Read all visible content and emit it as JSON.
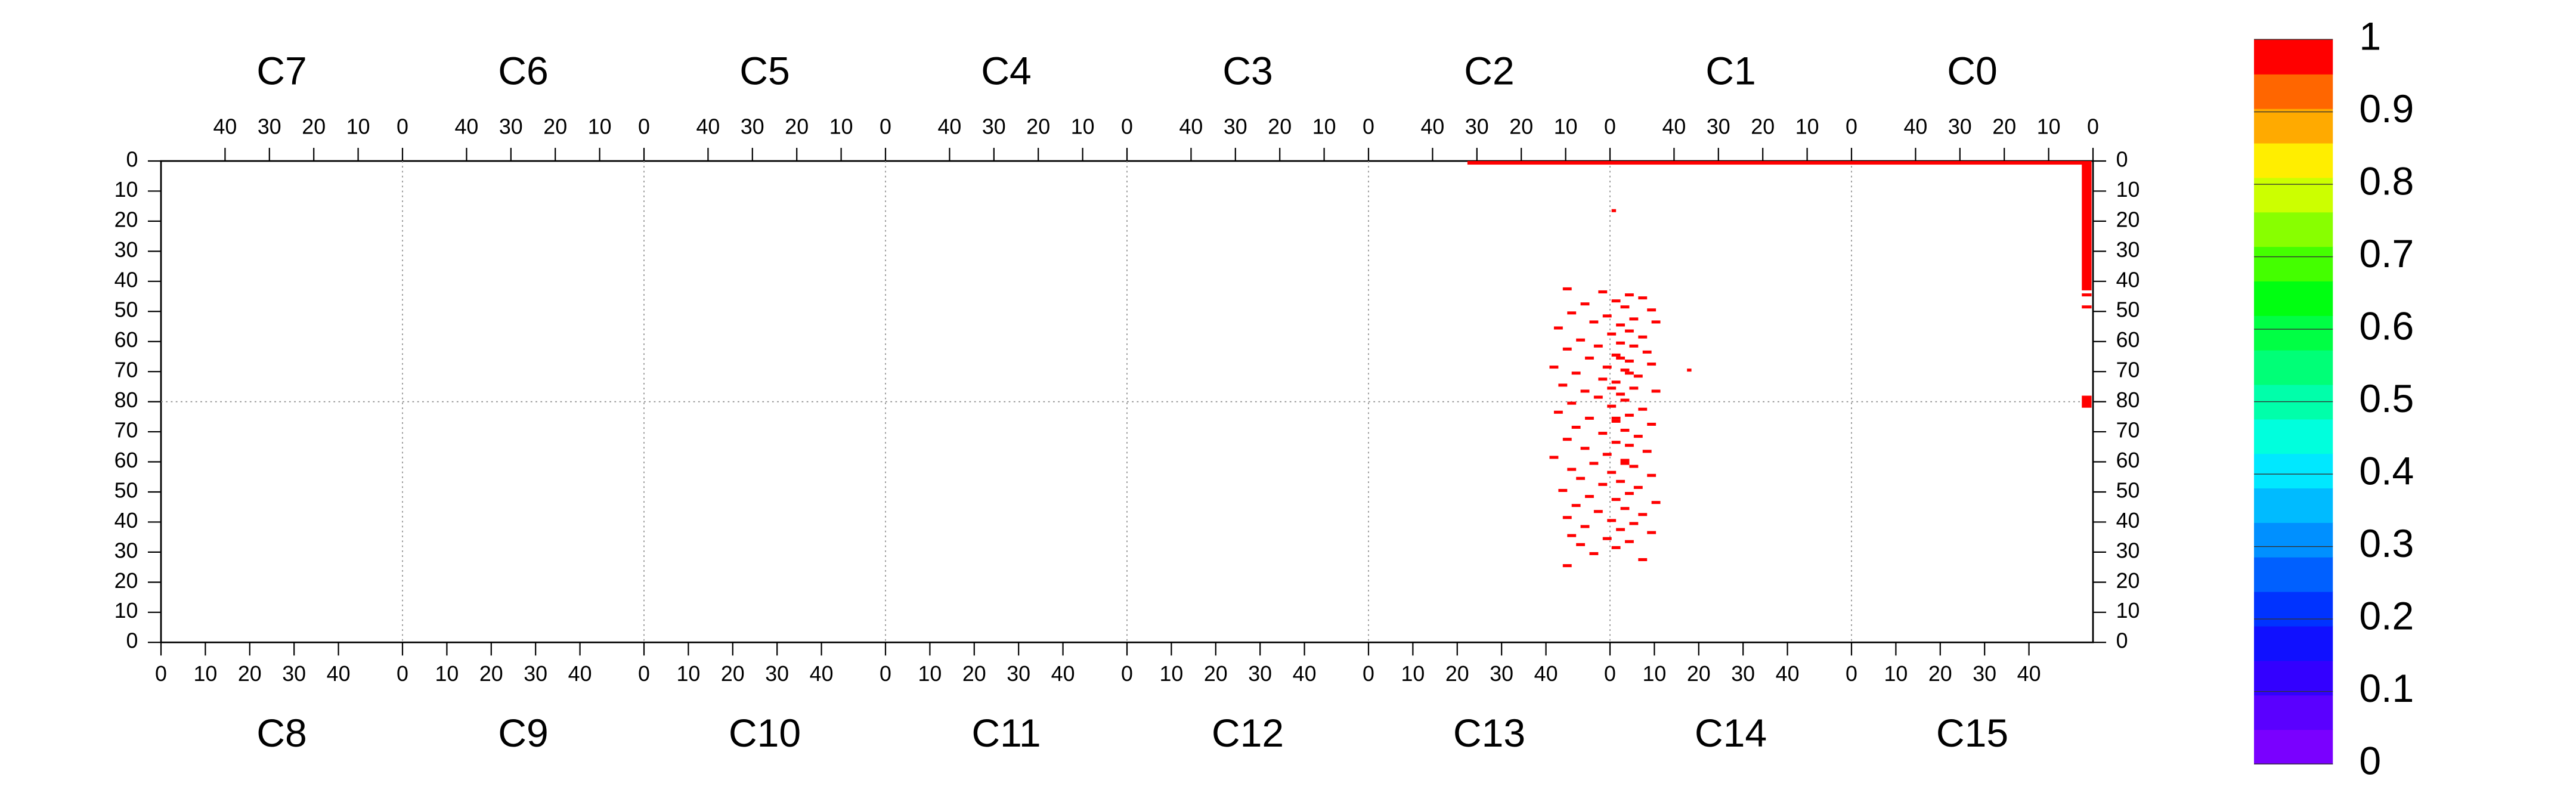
{
  "chart_data": {
    "type": "hitmap",
    "chips_top": [
      "C7",
      "C6",
      "C5",
      "C4",
      "C3",
      "C2",
      "C1",
      "C0"
    ],
    "chips_bottom": [
      "C8",
      "C9",
      "C10",
      "C11",
      "C12",
      "C13",
      "C14",
      "C15"
    ],
    "xlim": [
      0,
      54.44
    ],
    "xticks": [
      0,
      10,
      20,
      30,
      40
    ],
    "ylim": [
      0,
      80
    ],
    "yticks": [
      0,
      10,
      20,
      30,
      40,
      50,
      60,
      70,
      80
    ],
    "grid": true,
    "hit_color": "#ff0000",
    "hits": [
      [
        294.5,
        0,
        139.5,
        1.2
      ],
      [
        433,
        0,
        2.2,
        43
      ],
      [
        433,
        44,
        2.2,
        1
      ],
      [
        433,
        48,
        2.2,
        1
      ],
      [
        433,
        78,
        2.2,
        4
      ],
      [
        327,
        16,
        1,
        1
      ],
      [
        316,
        42,
        2,
        1
      ],
      [
        324,
        43,
        2,
        1
      ],
      [
        330,
        44,
        2,
        1
      ],
      [
        333,
        45,
        2,
        1
      ],
      [
        327,
        46,
        2,
        1
      ],
      [
        320,
        47,
        2,
        1
      ],
      [
        329,
        48,
        2,
        1
      ],
      [
        335,
        49,
        2,
        1
      ],
      [
        317,
        50,
        2,
        1
      ],
      [
        325,
        51,
        2,
        1
      ],
      [
        331,
        52,
        2,
        1
      ],
      [
        322,
        53,
        2,
        1
      ],
      [
        336,
        53,
        2,
        1
      ],
      [
        328,
        54,
        2,
        1
      ],
      [
        314,
        55,
        2,
        1
      ],
      [
        330,
        56,
        2,
        1
      ],
      [
        326,
        57,
        2,
        1
      ],
      [
        333,
        58,
        2,
        1
      ],
      [
        319,
        59,
        2,
        1
      ],
      [
        328,
        60,
        2,
        1
      ],
      [
        323,
        61,
        2,
        1
      ],
      [
        331,
        61,
        2,
        1
      ],
      [
        316,
        62,
        2,
        1
      ],
      [
        334,
        63,
        2,
        1
      ],
      [
        327,
        64,
        2,
        1
      ],
      [
        328,
        65,
        2,
        1
      ],
      [
        321,
        65,
        2,
        1
      ],
      [
        330,
        66,
        2,
        1
      ],
      [
        335,
        67,
        2,
        1
      ],
      [
        313,
        68,
        2,
        1
      ],
      [
        325,
        68,
        2,
        1
      ],
      [
        329,
        69,
        2,
        1
      ],
      [
        344,
        69,
        1,
        1
      ],
      [
        318,
        70,
        2,
        1
      ],
      [
        330,
        70,
        2,
        1
      ],
      [
        332,
        71,
        2,
        1
      ],
      [
        324,
        72,
        2,
        1
      ],
      [
        327,
        73,
        2,
        1
      ],
      [
        315,
        74,
        2,
        1
      ],
      [
        331,
        75,
        2,
        1
      ],
      [
        326,
        75,
        2,
        1
      ],
      [
        320,
        76,
        2,
        1
      ],
      [
        336,
        76,
        2,
        1
      ],
      [
        328,
        77,
        2,
        1
      ],
      [
        323,
        78,
        2,
        1
      ],
      [
        329,
        79,
        2,
        1
      ],
      [
        317,
        80,
        2,
        1
      ],
      [
        326,
        81,
        2,
        1
      ],
      [
        333,
        82,
        2,
        1
      ],
      [
        314,
        83,
        2,
        1
      ],
      [
        330,
        84,
        2,
        1
      ],
      [
        321,
        85,
        2,
        1
      ],
      [
        327,
        85,
        2,
        1
      ],
      [
        327,
        86,
        2,
        1
      ],
      [
        335,
        87,
        2,
        1
      ],
      [
        318,
        88,
        2,
        1
      ],
      [
        329,
        89,
        2,
        1
      ],
      [
        324,
        90,
        2,
        1
      ],
      [
        332,
        91,
        2,
        1
      ],
      [
        316,
        92,
        2,
        1
      ],
      [
        327,
        93,
        2,
        1
      ],
      [
        330,
        94,
        2,
        1
      ],
      [
        320,
        95,
        2,
        1
      ],
      [
        334,
        96,
        2,
        1
      ],
      [
        325,
        97,
        2,
        1
      ],
      [
        313,
        98,
        2,
        1
      ],
      [
        329,
        99,
        2,
        1
      ],
      [
        329,
        100,
        2,
        1
      ],
      [
        322,
        100,
        2,
        1
      ],
      [
        331,
        101,
        2,
        1
      ],
      [
        317,
        102,
        2,
        1
      ],
      [
        326,
        103,
        2,
        1
      ],
      [
        335,
        104,
        2,
        1
      ],
      [
        319,
        105,
        2,
        1
      ],
      [
        328,
        106,
        2,
        1
      ],
      [
        324,
        107,
        2,
        1
      ],
      [
        332,
        108,
        2,
        1
      ],
      [
        315,
        109,
        2,
        1
      ],
      [
        330,
        110,
        2,
        1
      ],
      [
        321,
        111,
        2,
        1
      ],
      [
        327,
        112,
        2,
        1
      ],
      [
        336,
        113,
        2,
        1
      ],
      [
        318,
        114,
        2,
        1
      ],
      [
        329,
        115,
        2,
        1
      ],
      [
        323,
        116,
        2,
        1
      ],
      [
        333,
        117,
        2,
        1
      ],
      [
        316,
        118,
        2,
        1
      ],
      [
        326,
        119,
        2,
        1
      ],
      [
        331,
        120,
        2,
        1
      ],
      [
        320,
        121,
        2,
        1
      ],
      [
        328,
        122,
        2,
        1
      ],
      [
        335,
        123,
        2,
        1
      ],
      [
        317,
        124,
        2,
        1
      ],
      [
        325,
        125,
        2,
        1
      ],
      [
        330,
        126,
        2,
        1
      ],
      [
        319,
        127,
        2,
        1
      ],
      [
        327,
        128,
        2,
        1
      ],
      [
        322,
        130,
        2,
        1
      ],
      [
        333,
        132,
        2,
        1
      ],
      [
        316,
        134,
        2,
        1
      ]
    ],
    "cb_lim": [
      0,
      1
    ],
    "cb_ticks": [
      0,
      0.1,
      0.2,
      0.3,
      0.4,
      0.5,
      0.6,
      0.7,
      0.8,
      0.9,
      1
    ],
    "cb_colors": [
      "#7a00ff",
      "#5a00ff",
      "#3300ff",
      "#1010ff",
      "#0033ff",
      "#0060ff",
      "#0090ff",
      "#00bbff",
      "#00e8ff",
      "#00ffdd",
      "#00ffaa",
      "#00ff77",
      "#00ff44",
      "#00ff11",
      "#44ff00",
      "#88ff00",
      "#ccff00",
      "#ffee00",
      "#ffaa00",
      "#ff6600",
      "#ff0000"
    ]
  }
}
